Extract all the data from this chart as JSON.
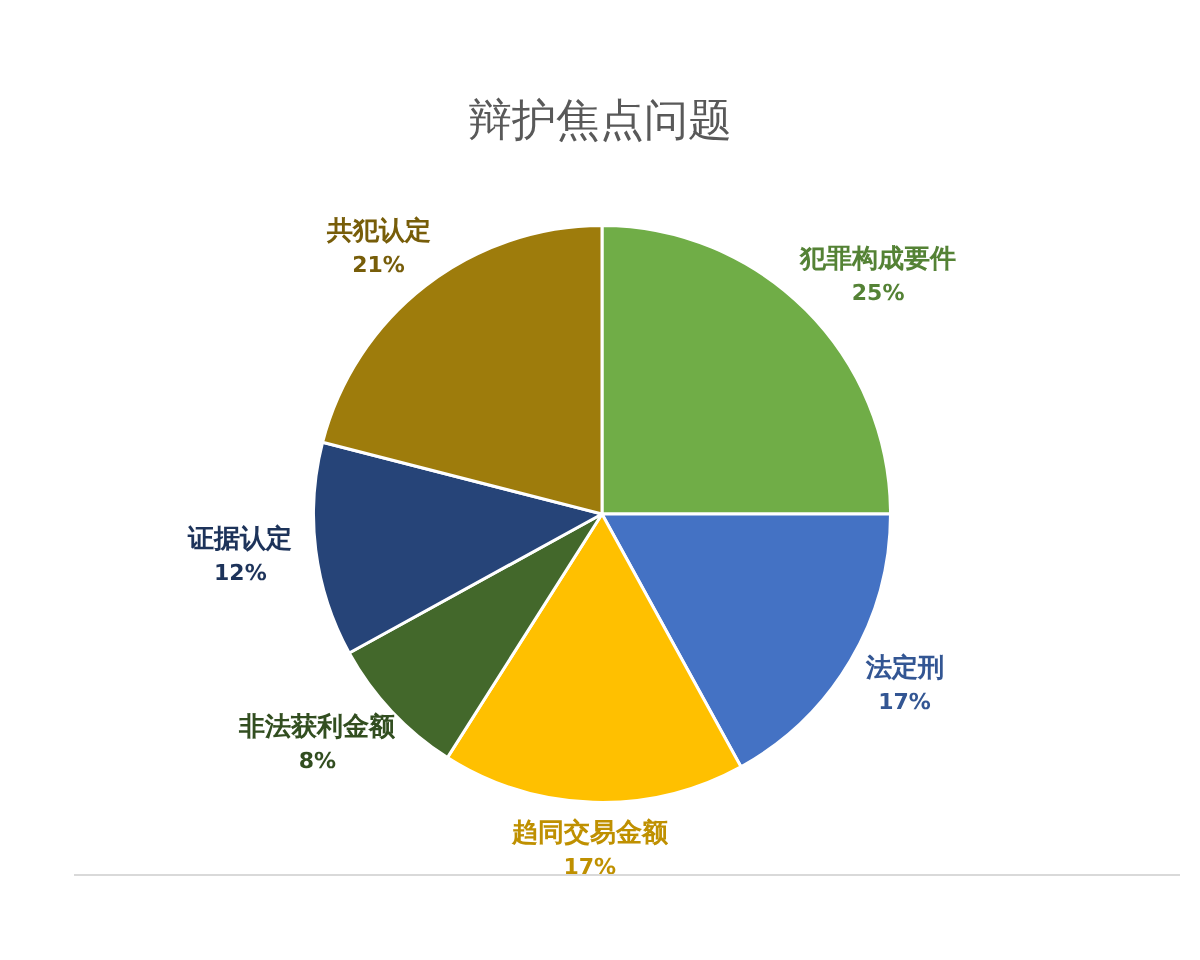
{
  "chart_data": {
    "type": "pie",
    "title": "辩护焦点问题",
    "categories": [
      "犯罪构成要件",
      "法定刑",
      "趋同交易金额",
      "非法获利金额",
      "证据认定",
      "共犯认定"
    ],
    "values": [
      25,
      17,
      17,
      8,
      12,
      21
    ],
    "value_labels": [
      "25%",
      "17%",
      "17%",
      "8%",
      "12%",
      "21%"
    ],
    "colors": [
      "#70ad47",
      "#4472c4",
      "#ffc000",
      "#43682b",
      "#264478",
      "#9e7c0c"
    ],
    "legend": false
  }
}
